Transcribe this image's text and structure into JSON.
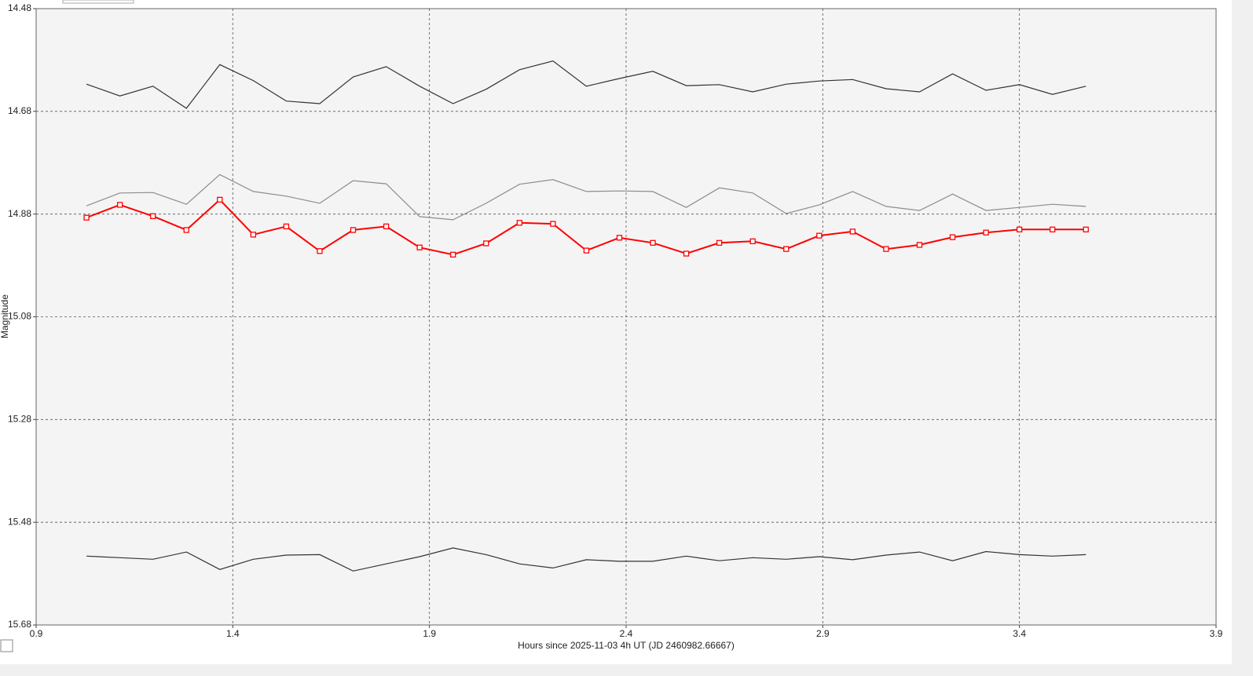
{
  "chart_data": {
    "type": "line",
    "xlabel": "Hours since 2025-11-03 4h UT (JD 2460982.66667)",
    "ylabel": "Magnitude",
    "x": [
      1.028,
      1.113,
      1.197,
      1.282,
      1.367,
      1.452,
      1.536,
      1.621,
      1.706,
      1.79,
      1.875,
      1.96,
      2.044,
      2.129,
      2.214,
      2.299,
      2.383,
      2.468,
      2.553,
      2.637,
      2.722,
      2.807,
      2.891,
      2.976,
      3.061,
      3.146,
      3.23,
      3.315,
      3.4,
      3.484,
      3.569
    ],
    "series": [
      {
        "color": "#333333",
        "values": [
          14.627,
          14.65,
          14.631,
          14.674,
          14.589,
          14.62,
          14.66,
          14.665,
          14.613,
          14.593,
          14.631,
          14.665,
          14.637,
          14.599,
          14.582,
          14.631,
          14.616,
          14.602,
          14.63,
          14.628,
          14.642,
          14.627,
          14.621,
          14.618,
          14.636,
          14.642,
          14.607,
          14.639,
          14.628,
          14.647,
          14.631
        ]
      },
      {
        "color": "#8c8c8c",
        "values": [
          14.864,
          14.839,
          14.838,
          14.861,
          14.803,
          14.836,
          14.845,
          14.859,
          14.815,
          14.821,
          14.885,
          14.891,
          14.859,
          14.822,
          14.813,
          14.836,
          14.835,
          14.836,
          14.867,
          14.829,
          14.839,
          14.879,
          14.862,
          14.836,
          14.865,
          14.873,
          14.841,
          14.873,
          14.867,
          14.861,
          14.865
        ]
      },
      {
        "color": "#ff0000",
        "markers": true,
        "values": [
          14.887,
          14.862,
          14.884,
          14.911,
          14.852,
          14.92,
          14.904,
          14.952,
          14.911,
          14.904,
          14.945,
          14.959,
          14.937,
          14.897,
          14.899,
          14.951,
          14.926,
          14.936,
          14.957,
          14.936,
          14.933,
          14.948,
          14.922,
          14.914,
          14.948,
          14.94,
          14.925,
          14.916,
          14.91,
          14.91,
          14.91
        ]
      },
      {
        "color": "#333333",
        "values": [
          15.546,
          15.549,
          15.552,
          15.538,
          15.572,
          15.552,
          15.544,
          15.543,
          15.575,
          15.561,
          15.547,
          15.53,
          15.543,
          15.561,
          15.569,
          15.553,
          15.556,
          15.556,
          15.546,
          15.555,
          15.549,
          15.552,
          15.547,
          15.553,
          15.544,
          15.538,
          15.555,
          15.537,
          15.543,
          15.546,
          15.543
        ]
      }
    ],
    "xlim": [
      0.9,
      3.9
    ],
    "xticks": [
      0.9,
      1.4,
      1.9,
      2.4,
      2.9,
      3.4,
      3.9
    ],
    "ylim": [
      14.48,
      15.68
    ],
    "yticks": [
      14.48,
      14.68,
      14.88,
      15.08,
      15.28,
      15.48,
      15.68
    ],
    "y_reversed": true,
    "grid": true
  }
}
